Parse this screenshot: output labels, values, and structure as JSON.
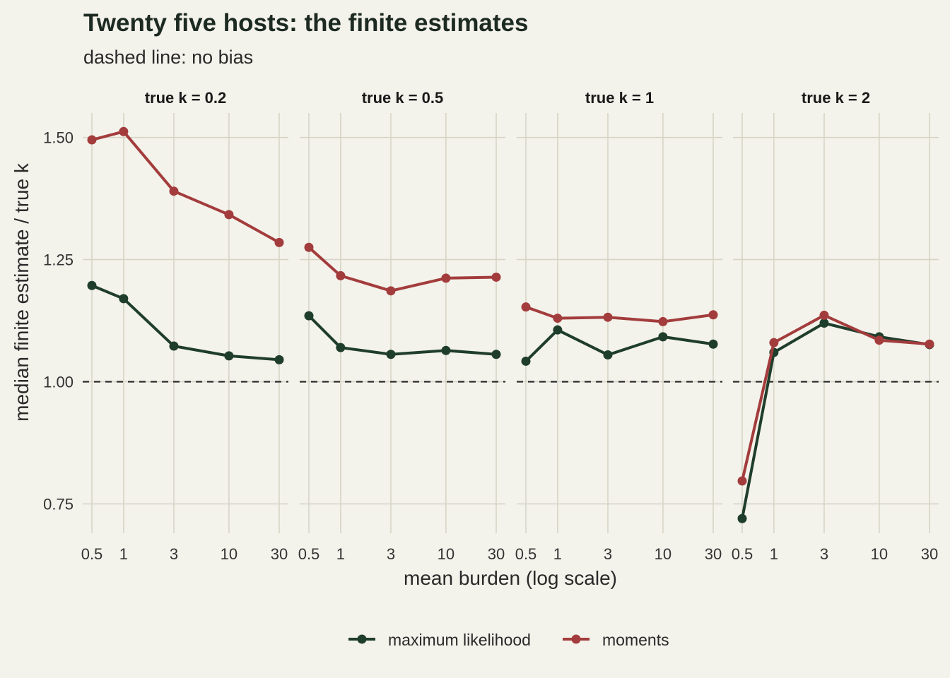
{
  "chart_data": {
    "type": "line",
    "title": "Twenty five hosts: the finite estimates",
    "subtitle": "dashed line: no bias",
    "xlabel": "mean burden (log scale)",
    "ylabel": "median finite estimate / true k",
    "x_scale": "log",
    "x": [
      0.5,
      1,
      3,
      10,
      30
    ],
    "x_tick_labels": [
      "0.5",
      "1",
      "3",
      "10",
      "30"
    ],
    "ylim": [
      0.69,
      1.55
    ],
    "y_ticks": [
      0.75,
      1.0,
      1.25,
      1.5
    ],
    "y_tick_labels": [
      "0.75",
      "1.00",
      "1.25",
      "1.50"
    ],
    "reference_line": 1.0,
    "legend_position": "bottom",
    "colors": {
      "maximum likelihood": "#1f3d2b",
      "moments": "#a33c3c",
      "reference": "#2b2b2b"
    },
    "panels": [
      {
        "label": "true k = 0.2",
        "series": [
          {
            "name": "maximum likelihood",
            "values": [
              1.197,
              1.17,
              1.073,
              1.053,
              1.045
            ]
          },
          {
            "name": "moments",
            "values": [
              1.495,
              1.512,
              1.39,
              1.342,
              1.285
            ]
          }
        ]
      },
      {
        "label": "true k = 0.5",
        "series": [
          {
            "name": "maximum likelihood",
            "values": [
              1.135,
              1.07,
              1.056,
              1.064,
              1.056
            ]
          },
          {
            "name": "moments",
            "values": [
              1.275,
              1.217,
              1.186,
              1.212,
              1.214
            ]
          }
        ]
      },
      {
        "label": "true k = 1",
        "series": [
          {
            "name": "maximum likelihood",
            "values": [
              1.042,
              1.106,
              1.055,
              1.092,
              1.077
            ]
          },
          {
            "name": "moments",
            "values": [
              1.153,
              1.13,
              1.132,
              1.123,
              1.137
            ]
          }
        ]
      },
      {
        "label": "true k = 2",
        "series": [
          {
            "name": "maximum likelihood",
            "values": [
              0.72,
              1.06,
              1.12,
              1.092,
              1.076
            ]
          },
          {
            "name": "moments",
            "values": [
              0.797,
              1.08,
              1.136,
              1.085,
              1.077
            ]
          }
        ]
      }
    ],
    "legend": [
      "maximum likelihood",
      "moments"
    ]
  }
}
